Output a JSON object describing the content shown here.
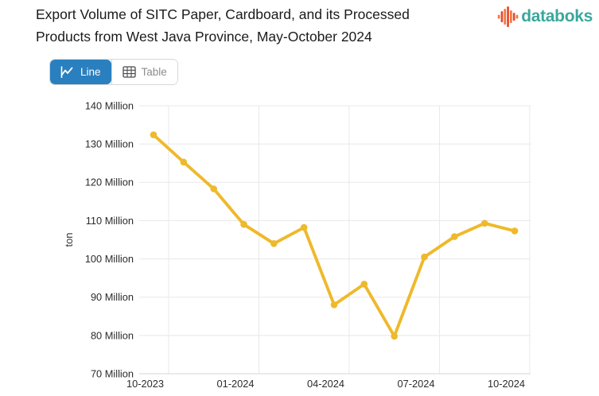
{
  "header": {
    "title": "Export Volume of SITC Paper, Cardboard, and its Processed Products from West Java Province, May-October 2024"
  },
  "logo": {
    "text": "databoks",
    "text_color": "#3aa79c",
    "icon_colors": [
      "#f0793f",
      "#e84730"
    ]
  },
  "toolbar": {
    "line_label": "Line",
    "table_label": "Table",
    "active_bg": "#2a7fbf"
  },
  "chart_data": {
    "type": "line",
    "title": "Export Volume of SITC Paper, Cardboard, and its Processed Products from West Java Province, May-October 2024",
    "x": [
      "10-2023",
      "11-2023",
      "12-2023",
      "01-2024",
      "02-2024",
      "03-2024",
      "04-2024",
      "05-2024",
      "06-2024",
      "07-2024",
      "08-2024",
      "09-2024",
      "10-2024"
    ],
    "values": [
      132.4,
      125.3,
      118.3,
      109.0,
      104.0,
      108.2,
      88.0,
      93.4,
      79.8,
      100.5,
      105.8,
      109.3,
      107.3
    ],
    "unit": "Million ton",
    "ylabel": "ton",
    "ylim": [
      70,
      140
    ],
    "ytick_step": 10,
    "ytick_labels": [
      "140 Million",
      "130 Million",
      "120 Million",
      "110 Million",
      "100 Million",
      "90 Million",
      "80 Million",
      "70 Million"
    ],
    "xticks": [
      {
        "index": 0,
        "label": "10-2023"
      },
      {
        "index": 3,
        "label": "01-2024"
      },
      {
        "index": 6,
        "label": "04-2024"
      },
      {
        "index": 9,
        "label": "07-2024"
      },
      {
        "index": 12,
        "label": "10-2024"
      }
    ],
    "legend": "none",
    "grid": true,
    "line_color": "#eeb92b",
    "grid_color": "#e8e8e8",
    "axis_line_color": "#d6d6d6",
    "label_color": "#2b2b2b"
  }
}
